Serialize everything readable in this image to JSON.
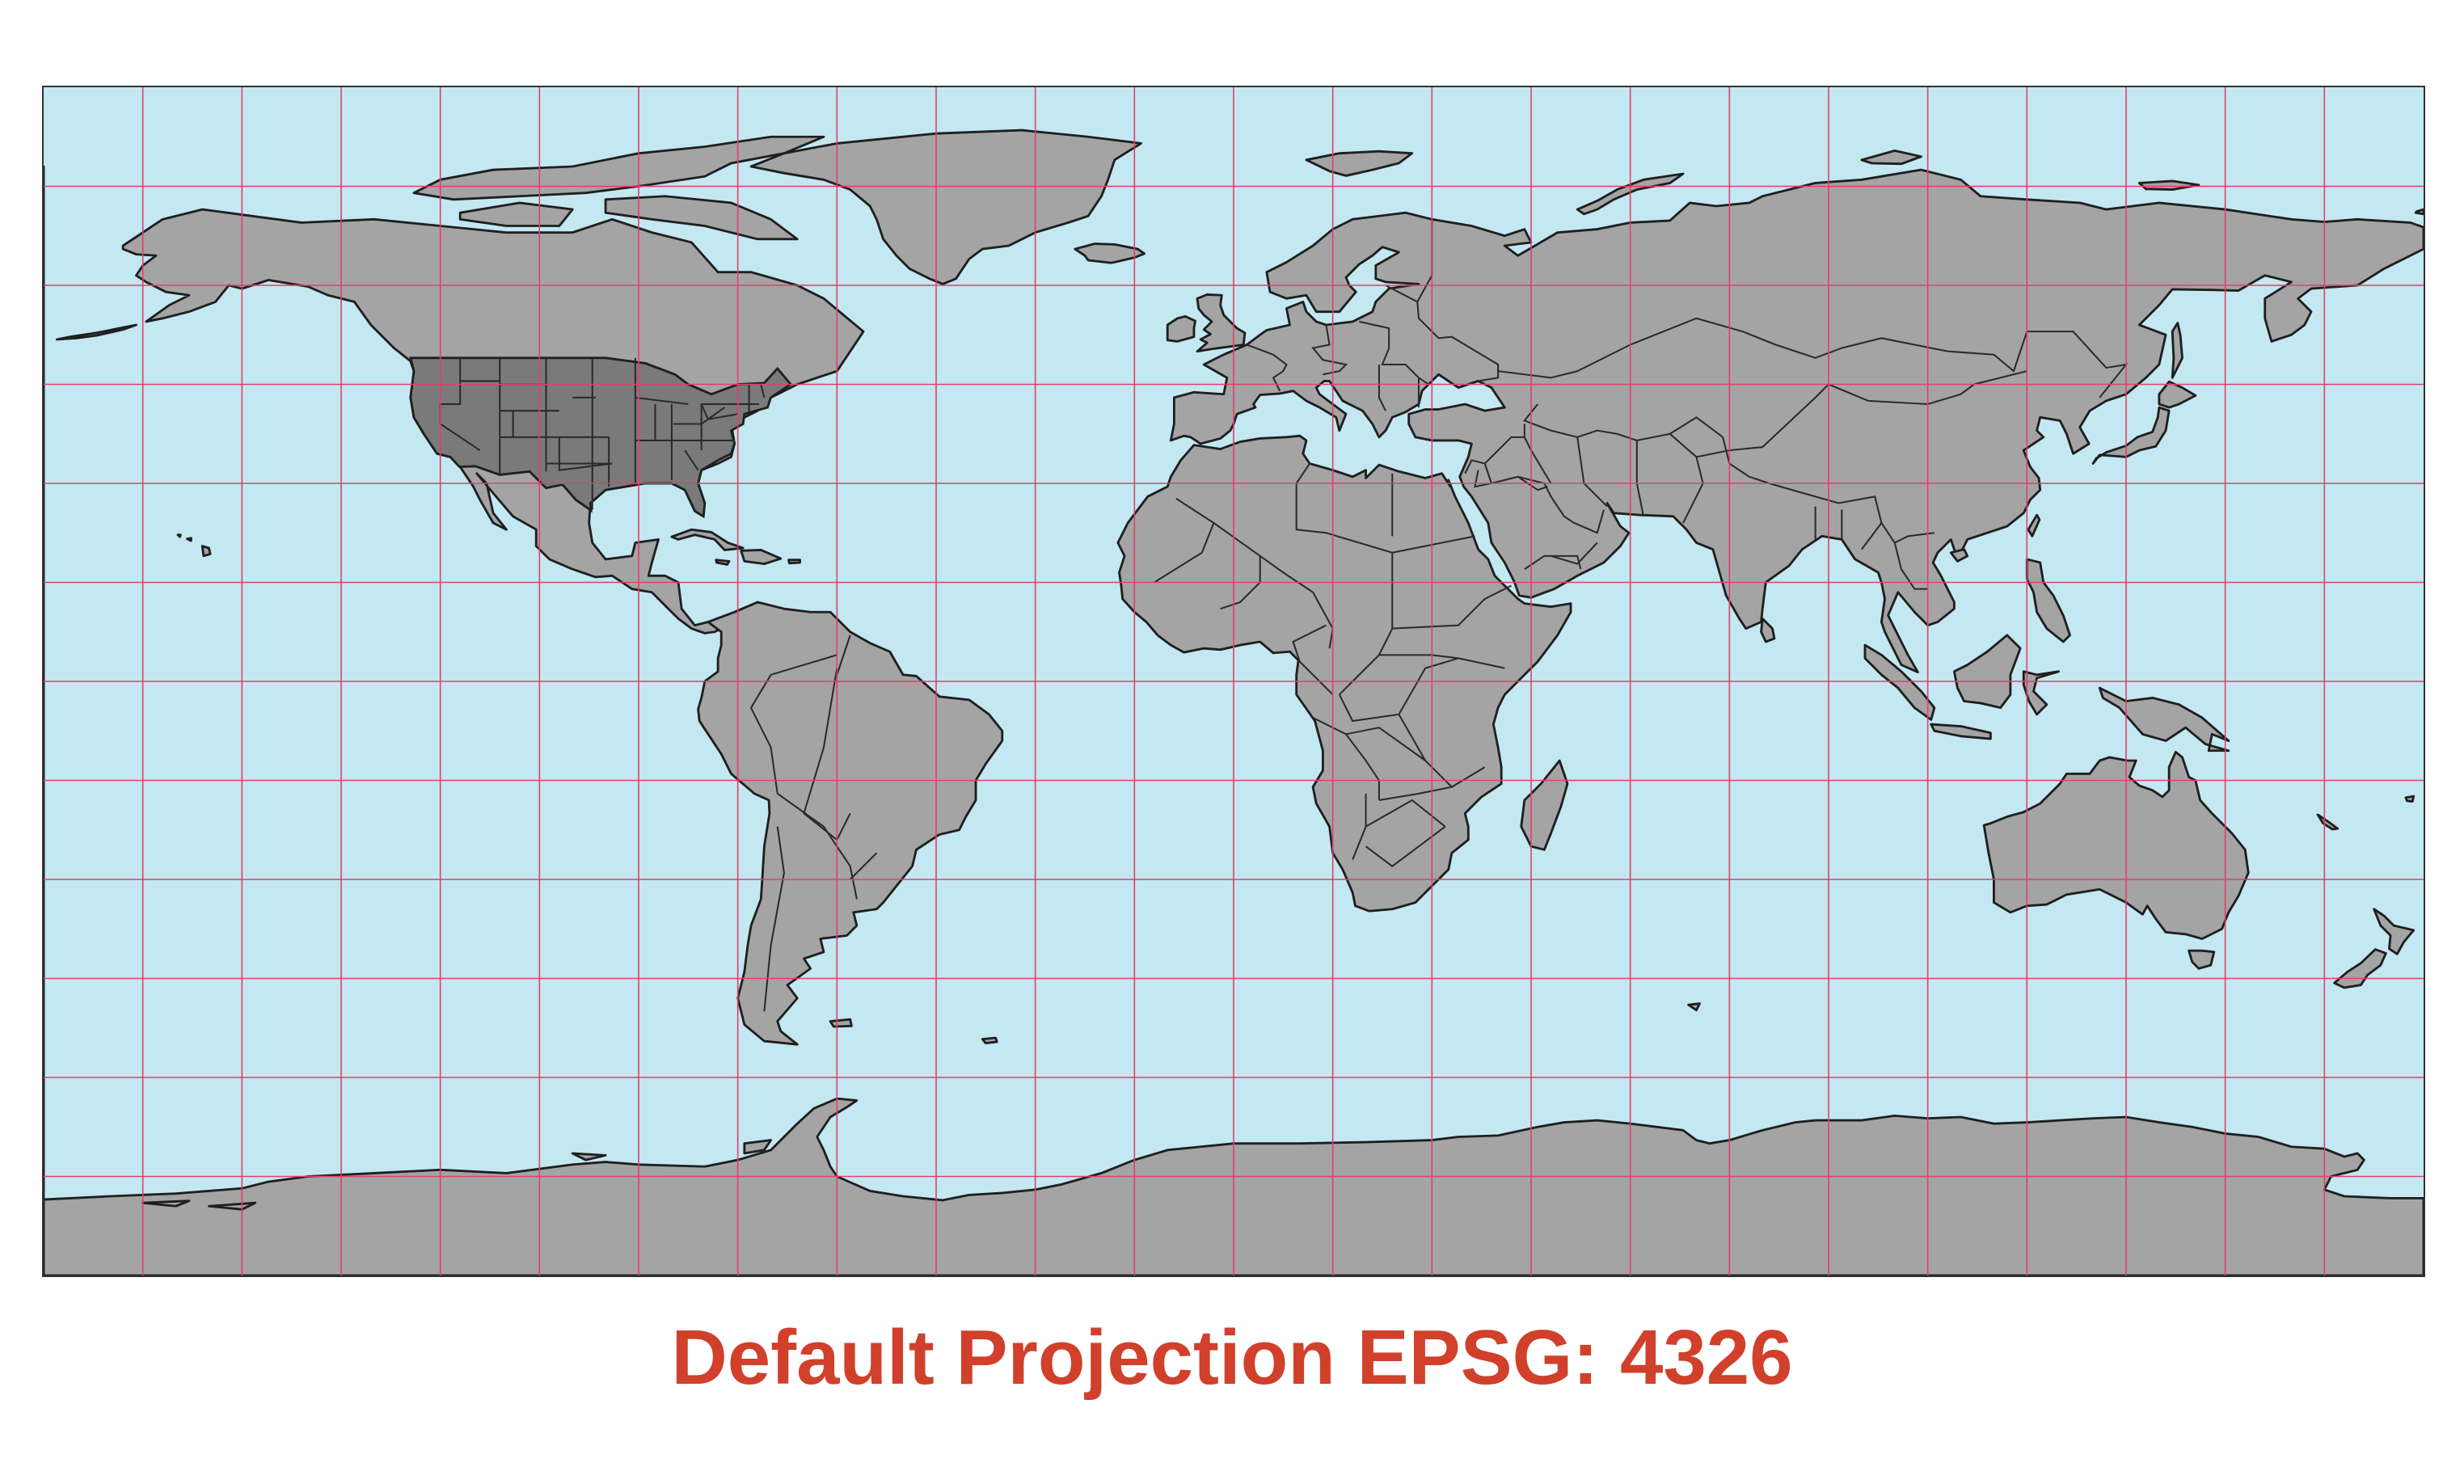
{
  "caption": "Default Projection EPSG: 4326",
  "map": {
    "projection": "EPSG:4326",
    "extent": {
      "lon": [
        -180,
        180
      ],
      "lat": [
        -90,
        90
      ]
    },
    "graticule_step_degrees": 15,
    "highlighted_region": "contiguous-united-states",
    "colors": {
      "ocean": "#c3e8f1",
      "land": "#a5a4a4",
      "highlight": "#7b7a7a",
      "graticule": "#e0406a",
      "caption": "#d0402b"
    }
  }
}
